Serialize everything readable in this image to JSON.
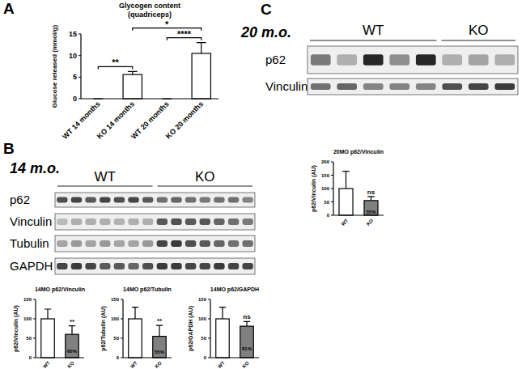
{
  "panels": [
    {
      "letter": "A"
    },
    {
      "letter": "B",
      "timepoint": "14 m.o.",
      "blot": {
        "groups": [
          {
            "name": "WT",
            "lanes": 7
          },
          {
            "name": "KO",
            "lanes": 7
          }
        ],
        "rows": [
          "p62",
          "Vinculin",
          "Tubulin",
          "GAPDH"
        ]
      }
    },
    {
      "letter": "C",
      "timepoint": "20 m.o.",
      "blot": {
        "groups": [
          {
            "name": "WT",
            "lanes": 5
          },
          {
            "name": "KO",
            "lanes": 3
          }
        ],
        "rows": [
          "p62",
          "Vinculin"
        ]
      }
    }
  ],
  "chart_data": [
    {
      "type": "bar",
      "title": "Glycogen content",
      "subtitle": "(quadriceps)",
      "y_label": "Glucose released (mmol/g)",
      "categories": [
        "WT 14 months",
        "KO 14 months",
        "WT 20 months",
        "KO 20 months"
      ],
      "values": [
        0,
        5.6,
        0,
        10.5
      ],
      "errors": [
        0,
        0.7,
        0,
        2.5
      ],
      "colors": [
        "#ffffff",
        "#ffffff",
        "#ffffff",
        "#ffffff"
      ],
      "ylim": [
        0,
        15
      ],
      "yticks": [
        0,
        5,
        10,
        15
      ],
      "annotations": [
        {
          "text": "**",
          "from": "WT 14 months",
          "to": "KO 14 months"
        },
        {
          "text": "****",
          "from": "WT 20 months",
          "to": "KO 20 months"
        },
        {
          "text": "*",
          "from": "KO 14 months",
          "to": "KO 20 months"
        }
      ]
    },
    {
      "type": "bar",
      "title": "14MO p62/Vinculin",
      "y_label": "p62/Vinculin (AU)",
      "categories": [
        "WT",
        "KO"
      ],
      "values": [
        100,
        60
      ],
      "errors": [
        25,
        22
      ],
      "data_labels": true,
      "value_labels": [
        null,
        "60%"
      ],
      "significance": [
        null,
        "**"
      ],
      "colors": [
        "#ffffff",
        "#808080"
      ],
      "ylim": [
        0,
        150
      ],
      "yticks": [
        0,
        50,
        100,
        150
      ]
    },
    {
      "type": "bar",
      "title": "14MO p62/Tubulin",
      "y_label": "p62/Tubulin (AU)",
      "categories": [
        "WT",
        "KO"
      ],
      "values": [
        100,
        55
      ],
      "errors": [
        30,
        28
      ],
      "data_labels": true,
      "value_labels": [
        null,
        "55%"
      ],
      "significance": [
        null,
        "**"
      ],
      "colors": [
        "#ffffff",
        "#808080"
      ],
      "ylim": [
        0,
        150
      ],
      "yticks": [
        0,
        50,
        100,
        150
      ]
    },
    {
      "type": "bar",
      "title": "14MO p62/GAPDH",
      "y_label": "p62/GAPDH (AU)",
      "categories": [
        "WT",
        "KO"
      ],
      "values": [
        100,
        81
      ],
      "errors": [
        30,
        12
      ],
      "data_labels": true,
      "value_labels": [
        null,
        "81%"
      ],
      "significance": [
        null,
        "ns"
      ],
      "colors": [
        "#ffffff",
        "#808080"
      ],
      "ylim": [
        0,
        150
      ],
      "yticks": [
        0,
        50,
        100,
        150
      ]
    },
    {
      "type": "bar",
      "title": "20MO p62/Vinculin",
      "y_label": "p62/Vinculin (AU)",
      "categories": [
        "WT",
        "KO"
      ],
      "values": [
        100,
        55
      ],
      "errors": [
        65,
        15
      ],
      "data_labels": true,
      "value_labels": [
        null,
        "55%"
      ],
      "significance": [
        null,
        "ns"
      ],
      "colors": [
        "#ffffff",
        "#808080"
      ],
      "ylim": [
        0,
        200
      ],
      "yticks": [
        0,
        50,
        100,
        150,
        200
      ]
    }
  ]
}
